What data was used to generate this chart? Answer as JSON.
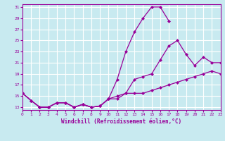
{
  "xlabel": "Windchill (Refroidissement éolien,°C)",
  "background_color": "#c8eaf0",
  "line_color": "#990099",
  "grid_color": "#ffffff",
  "xmin": 0,
  "xmax": 23,
  "ymin": 13,
  "ymax": 31,
  "yticks": [
    13,
    15,
    17,
    19,
    21,
    23,
    25,
    27,
    29,
    31
  ],
  "xticks": [
    0,
    1,
    2,
    3,
    4,
    5,
    6,
    7,
    8,
    9,
    10,
    11,
    12,
    13,
    14,
    15,
    16,
    17,
    18,
    19,
    20,
    21,
    22,
    23
  ],
  "line1_x": [
    0,
    1,
    2,
    3,
    4,
    5,
    6,
    7,
    8,
    9,
    10,
    11,
    12,
    13,
    14,
    15,
    16,
    17
  ],
  "line1_y": [
    15.5,
    14.2,
    13.0,
    13.0,
    13.8,
    13.8,
    13.0,
    13.5,
    13.0,
    13.2,
    14.5,
    18.0,
    23.0,
    26.5,
    29.0,
    31.0,
    31.0,
    28.5
  ],
  "line2_x": [
    0,
    1,
    2,
    3,
    4,
    5,
    6,
    7,
    8,
    9,
    10,
    11,
    12,
    13,
    14,
    15,
    16,
    17,
    18,
    19,
    20,
    21,
    22,
    23
  ],
  "line2_y": [
    15.5,
    14.2,
    13.0,
    13.0,
    13.8,
    13.8,
    13.0,
    13.5,
    13.0,
    13.2,
    14.5,
    15.0,
    15.5,
    15.5,
    15.5,
    16.0,
    16.5,
    17.0,
    17.5,
    18.0,
    18.5,
    19.0,
    19.5,
    19.0
  ],
  "line3_x": [
    0,
    1,
    2,
    3,
    4,
    5,
    6,
    7,
    8,
    9,
    10,
    11,
    12,
    13,
    14,
    15,
    16,
    17,
    18,
    19,
    20,
    21,
    22,
    23
  ],
  "line3_y": [
    15.5,
    14.2,
    13.0,
    13.0,
    13.8,
    13.8,
    13.0,
    13.5,
    13.0,
    13.2,
    14.5,
    14.5,
    15.5,
    18.0,
    18.5,
    19.0,
    21.5,
    24.0,
    25.0,
    22.5,
    20.5,
    22.0,
    21.0,
    21.0
  ]
}
